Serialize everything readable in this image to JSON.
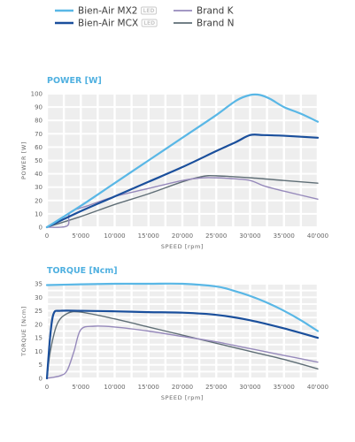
{
  "legend": [
    {
      "label": "Bien-Air MX2",
      "badge": "LED",
      "color": "#59b7e6"
    },
    {
      "label": "Bien-Air MCX",
      "badge": "LED",
      "color": "#1a4f9c"
    },
    {
      "label": "Brand K",
      "color": "#9689bb"
    },
    {
      "label": "Brand N",
      "color": "#5f6e76"
    }
  ],
  "chart_data": [
    {
      "type": "line",
      "title": "POWER [W]",
      "xlabel": "SPEED [rpm]",
      "ylabel": "POWER [W]",
      "xlim": [
        0,
        40000
      ],
      "ylim": [
        0,
        100
      ],
      "x_ticks": [
        0,
        5000,
        10000,
        15000,
        20000,
        25000,
        30000,
        35000,
        40000
      ],
      "x_tick_labels": [
        "0",
        "5'000",
        "10'000",
        "15'000",
        "20'000",
        "25'000",
        "30'000",
        "35'000",
        "40'000"
      ],
      "y_ticks": [
        0,
        10,
        20,
        30,
        40,
        50,
        60,
        70,
        80,
        90,
        100
      ],
      "y_tick_labels": [
        "0",
        "10",
        "20",
        "30",
        "40",
        "50",
        "60",
        "70",
        "80",
        "90",
        "100"
      ],
      "grid": true,
      "series": [
        {
          "name": "Bien-Air MX2",
          "color": "#59b7e6",
          "points": [
            [
              0,
              0
            ],
            [
              5000,
              16
            ],
            [
              10000,
              33
            ],
            [
              15000,
              50
            ],
            [
              20000,
              67
            ],
            [
              25000,
              84
            ],
            [
              28000,
              95
            ],
            [
              30000,
              99
            ],
            [
              31500,
              99
            ],
            [
              33000,
              96
            ],
            [
              35000,
              90
            ],
            [
              37500,
              85
            ],
            [
              40000,
              79
            ]
          ]
        },
        {
          "name": "Bien-Air MCX",
          "color": "#1a4f9c",
          "points": [
            [
              0,
              0
            ],
            [
              5000,
              12
            ],
            [
              10000,
              23
            ],
            [
              15000,
              34
            ],
            [
              20000,
              45
            ],
            [
              25000,
              57
            ],
            [
              28000,
              64
            ],
            [
              30000,
              69
            ],
            [
              32000,
              69
            ],
            [
              35000,
              68.5
            ],
            [
              40000,
              67
            ]
          ]
        },
        {
          "name": "Brand K",
          "color": "#9689bb",
          "points": [
            [
              0,
              0
            ],
            [
              3000,
              1
            ],
            [
              3400,
              11
            ],
            [
              6000,
              16
            ],
            [
              10000,
              23
            ],
            [
              15000,
              29
            ],
            [
              20000,
              35
            ],
            [
              23000,
              37
            ],
            [
              25000,
              37
            ],
            [
              27000,
              36.5
            ],
            [
              30000,
              35
            ],
            [
              32000,
              31
            ],
            [
              35000,
              27
            ],
            [
              40000,
              21
            ]
          ]
        },
        {
          "name": "Brand N",
          "color": "#5f6e76",
          "points": [
            [
              0,
              0
            ],
            [
              5000,
              8
            ],
            [
              10000,
              17
            ],
            [
              15000,
              25
            ],
            [
              20000,
              34
            ],
            [
              23000,
              38
            ],
            [
              25000,
              38.5
            ],
            [
              30000,
              37
            ],
            [
              35000,
              35
            ],
            [
              40000,
              33
            ]
          ]
        }
      ]
    },
    {
      "type": "line",
      "title": "TORQUE [Ncm]",
      "xlabel": "SPEED [rpm]",
      "ylabel": "TORQUE [Ncm]",
      "xlim": [
        0,
        40000
      ],
      "ylim": [
        0,
        35
      ],
      "x_ticks": [
        0,
        5000,
        10000,
        15000,
        20000,
        25000,
        30000,
        35000,
        40000
      ],
      "x_tick_labels": [
        "0",
        "5'000",
        "10'000",
        "15'000",
        "20'000",
        "25'000",
        "30'000",
        "35'000",
        "40'000"
      ],
      "y_ticks": [
        0,
        5,
        10,
        15,
        20,
        25,
        30,
        35
      ],
      "y_tick_labels": [
        "0",
        "5",
        "10",
        "15",
        "20",
        "25",
        "30",
        "35"
      ],
      "grid": true,
      "series": [
        {
          "name": "Bien-Air MX2",
          "color": "#59b7e6",
          "points": [
            [
              0,
              34.5
            ],
            [
              5000,
              34.8
            ],
            [
              10000,
              35
            ],
            [
              15000,
              35
            ],
            [
              20000,
              35
            ],
            [
              25000,
              34
            ],
            [
              27500,
              32.5
            ],
            [
              30000,
              30.5
            ],
            [
              32500,
              28
            ],
            [
              35000,
              25
            ],
            [
              37500,
              21.5
            ],
            [
              40000,
              17.5
            ]
          ]
        },
        {
          "name": "Bien-Air MCX",
          "color": "#1a4f9c",
          "points": [
            [
              0,
              0
            ],
            [
              500,
              16
            ],
            [
              1000,
              24
            ],
            [
              2000,
              25
            ],
            [
              5000,
              25
            ],
            [
              10000,
              24.8
            ],
            [
              15000,
              24.5
            ],
            [
              20000,
              24.3
            ],
            [
              25000,
              23.5
            ],
            [
              30000,
              21.5
            ],
            [
              35000,
              18.5
            ],
            [
              40000,
              15
            ]
          ]
        },
        {
          "name": "Brand K",
          "color": "#9689bb",
          "points": [
            [
              0,
              0
            ],
            [
              2000,
              1
            ],
            [
              3000,
              3
            ],
            [
              4000,
              10
            ],
            [
              5000,
              18
            ],
            [
              7000,
              19.3
            ],
            [
              10000,
              19
            ],
            [
              15000,
              17.5
            ],
            [
              20000,
              15.5
            ],
            [
              25000,
              13.5
            ],
            [
              30000,
              11
            ],
            [
              35000,
              8.5
            ],
            [
              40000,
              6
            ]
          ]
        },
        {
          "name": "Brand N",
          "color": "#5f6e76",
          "points": [
            [
              0,
              0
            ],
            [
              500,
              10
            ],
            [
              1500,
              20
            ],
            [
              3000,
              24
            ],
            [
              5000,
              24.5
            ],
            [
              10000,
              22
            ],
            [
              15000,
              19
            ],
            [
              20000,
              16
            ],
            [
              25000,
              13
            ],
            [
              30000,
              10
            ],
            [
              35000,
              7
            ],
            [
              40000,
              3.5
            ]
          ]
        }
      ]
    }
  ]
}
